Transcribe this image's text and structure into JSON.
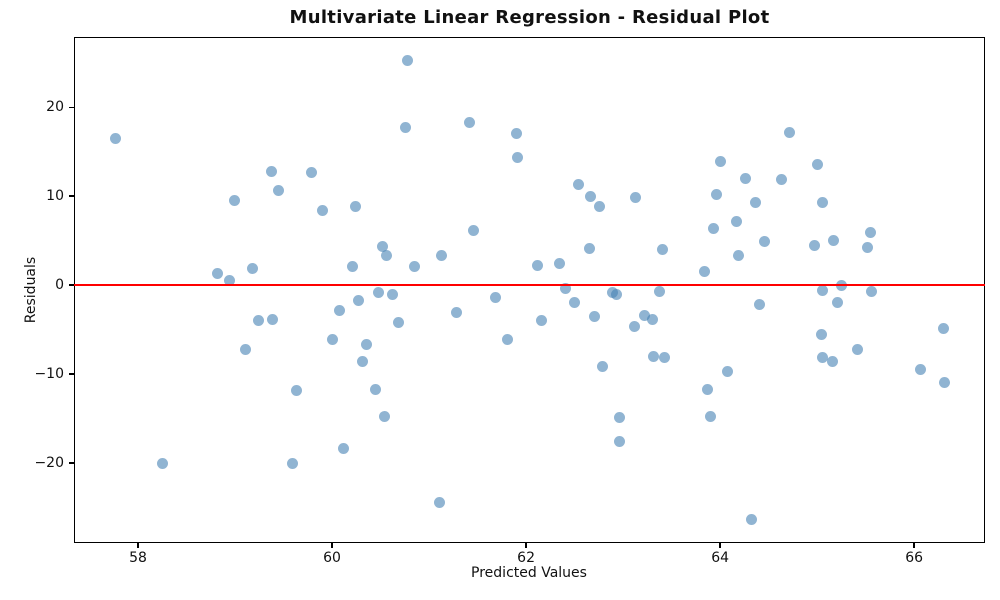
{
  "chart_data": {
    "type": "scatter",
    "title": "Multivariate Linear Regression - Residual Plot",
    "xlabel": "Predicted Values",
    "ylabel": "Residuals",
    "xlim": [
      57.34,
      66.73
    ],
    "ylim": [
      -29.0,
      27.9
    ],
    "grid": false,
    "legend": null,
    "xticks": {
      "values": [
        58,
        60,
        62,
        64,
        66
      ],
      "labels": [
        "58",
        "60",
        "62",
        "64",
        "66"
      ]
    },
    "yticks": {
      "values": [
        -20,
        -10,
        0,
        10,
        20
      ],
      "labels": [
        "−20",
        "−10",
        "0",
        "10",
        "20"
      ]
    },
    "marker_color": "#4682B4",
    "marker_alpha": 0.6,
    "zero_line_color": "#FF0000",
    "series_name": "residuals",
    "points": [
      [
        57.77,
        16.5
      ],
      [
        58.25,
        -20.1
      ],
      [
        58.82,
        1.3
      ],
      [
        58.94,
        0.5
      ],
      [
        58.99,
        9.5
      ],
      [
        59.11,
        -7.2
      ],
      [
        59.18,
        1.9
      ],
      [
        59.24,
        -4.0
      ],
      [
        59.38,
        12.8
      ],
      [
        59.39,
        -3.9
      ],
      [
        59.45,
        10.6
      ],
      [
        59.59,
        -20.1
      ],
      [
        59.63,
        -11.8
      ],
      [
        59.79,
        12.7
      ],
      [
        59.9,
        8.4
      ],
      [
        60.0,
        -6.1
      ],
      [
        60.08,
        -2.8
      ],
      [
        60.12,
        -18.4
      ],
      [
        60.21,
        2.1
      ],
      [
        60.24,
        8.8
      ],
      [
        60.27,
        -1.7
      ],
      [
        60.31,
        -8.6
      ],
      [
        60.35,
        -6.7
      ],
      [
        60.45,
        -11.7
      ],
      [
        60.48,
        -0.8
      ],
      [
        60.52,
        4.3
      ],
      [
        60.54,
        -14.8
      ],
      [
        60.56,
        3.3
      ],
      [
        60.62,
        -1.1
      ],
      [
        60.68,
        -4.2
      ],
      [
        60.76,
        17.7
      ],
      [
        60.78,
        25.3
      ],
      [
        60.85,
        2.1
      ],
      [
        61.11,
        -24.4
      ],
      [
        61.13,
        3.3
      ],
      [
        61.28,
        -3.1
      ],
      [
        61.42,
        18.3
      ],
      [
        61.46,
        6.1
      ],
      [
        61.68,
        -1.4
      ],
      [
        61.81,
        -6.1
      ],
      [
        61.9,
        17.1
      ],
      [
        61.91,
        14.4
      ],
      [
        62.12,
        2.2
      ],
      [
        62.16,
        -4.0
      ],
      [
        62.34,
        2.4
      ],
      [
        62.41,
        -0.4
      ],
      [
        62.5,
        -2.0
      ],
      [
        62.54,
        11.3
      ],
      [
        62.65,
        4.1
      ],
      [
        62.66,
        10.0
      ],
      [
        62.71,
        -3.5
      ],
      [
        62.76,
        8.8
      ],
      [
        62.79,
        -9.1
      ],
      [
        62.89,
        -0.8
      ],
      [
        62.93,
        -1.1
      ],
      [
        62.96,
        -14.9
      ],
      [
        62.96,
        -17.6
      ],
      [
        63.12,
        -4.6
      ],
      [
        63.13,
        9.8
      ],
      [
        63.22,
        -3.4
      ],
      [
        63.3,
        -3.9
      ],
      [
        63.31,
        -8.0
      ],
      [
        63.37,
        -0.7
      ],
      [
        63.41,
        4.0
      ],
      [
        63.43,
        -8.1
      ],
      [
        63.84,
        1.5
      ],
      [
        63.87,
        -11.7
      ],
      [
        63.9,
        -14.8
      ],
      [
        63.93,
        6.4
      ],
      [
        63.96,
        10.2
      ],
      [
        64.0,
        13.9
      ],
      [
        64.08,
        -9.7
      ],
      [
        64.17,
        7.2
      ],
      [
        64.19,
        3.3
      ],
      [
        64.26,
        12.0
      ],
      [
        64.32,
        -26.4
      ],
      [
        64.36,
        9.3
      ],
      [
        64.41,
        -2.2
      ],
      [
        64.46,
        4.9
      ],
      [
        64.63,
        11.9
      ],
      [
        64.72,
        17.2
      ],
      [
        64.97,
        4.5
      ],
      [
        65.0,
        13.6
      ],
      [
        65.04,
        -5.5
      ],
      [
        65.05,
        -8.1
      ],
      [
        65.05,
        9.3
      ],
      [
        65.06,
        -0.6
      ],
      [
        65.16,
        -8.6
      ],
      [
        65.17,
        5.0
      ],
      [
        65.21,
        -1.9
      ],
      [
        65.25,
        0.0
      ],
      [
        65.42,
        -7.2
      ],
      [
        65.52,
        4.2
      ],
      [
        65.55,
        5.9
      ],
      [
        65.56,
        -0.7
      ],
      [
        66.07,
        -9.5
      ],
      [
        66.3,
        -4.9
      ],
      [
        66.31,
        -10.9
      ]
    ]
  }
}
